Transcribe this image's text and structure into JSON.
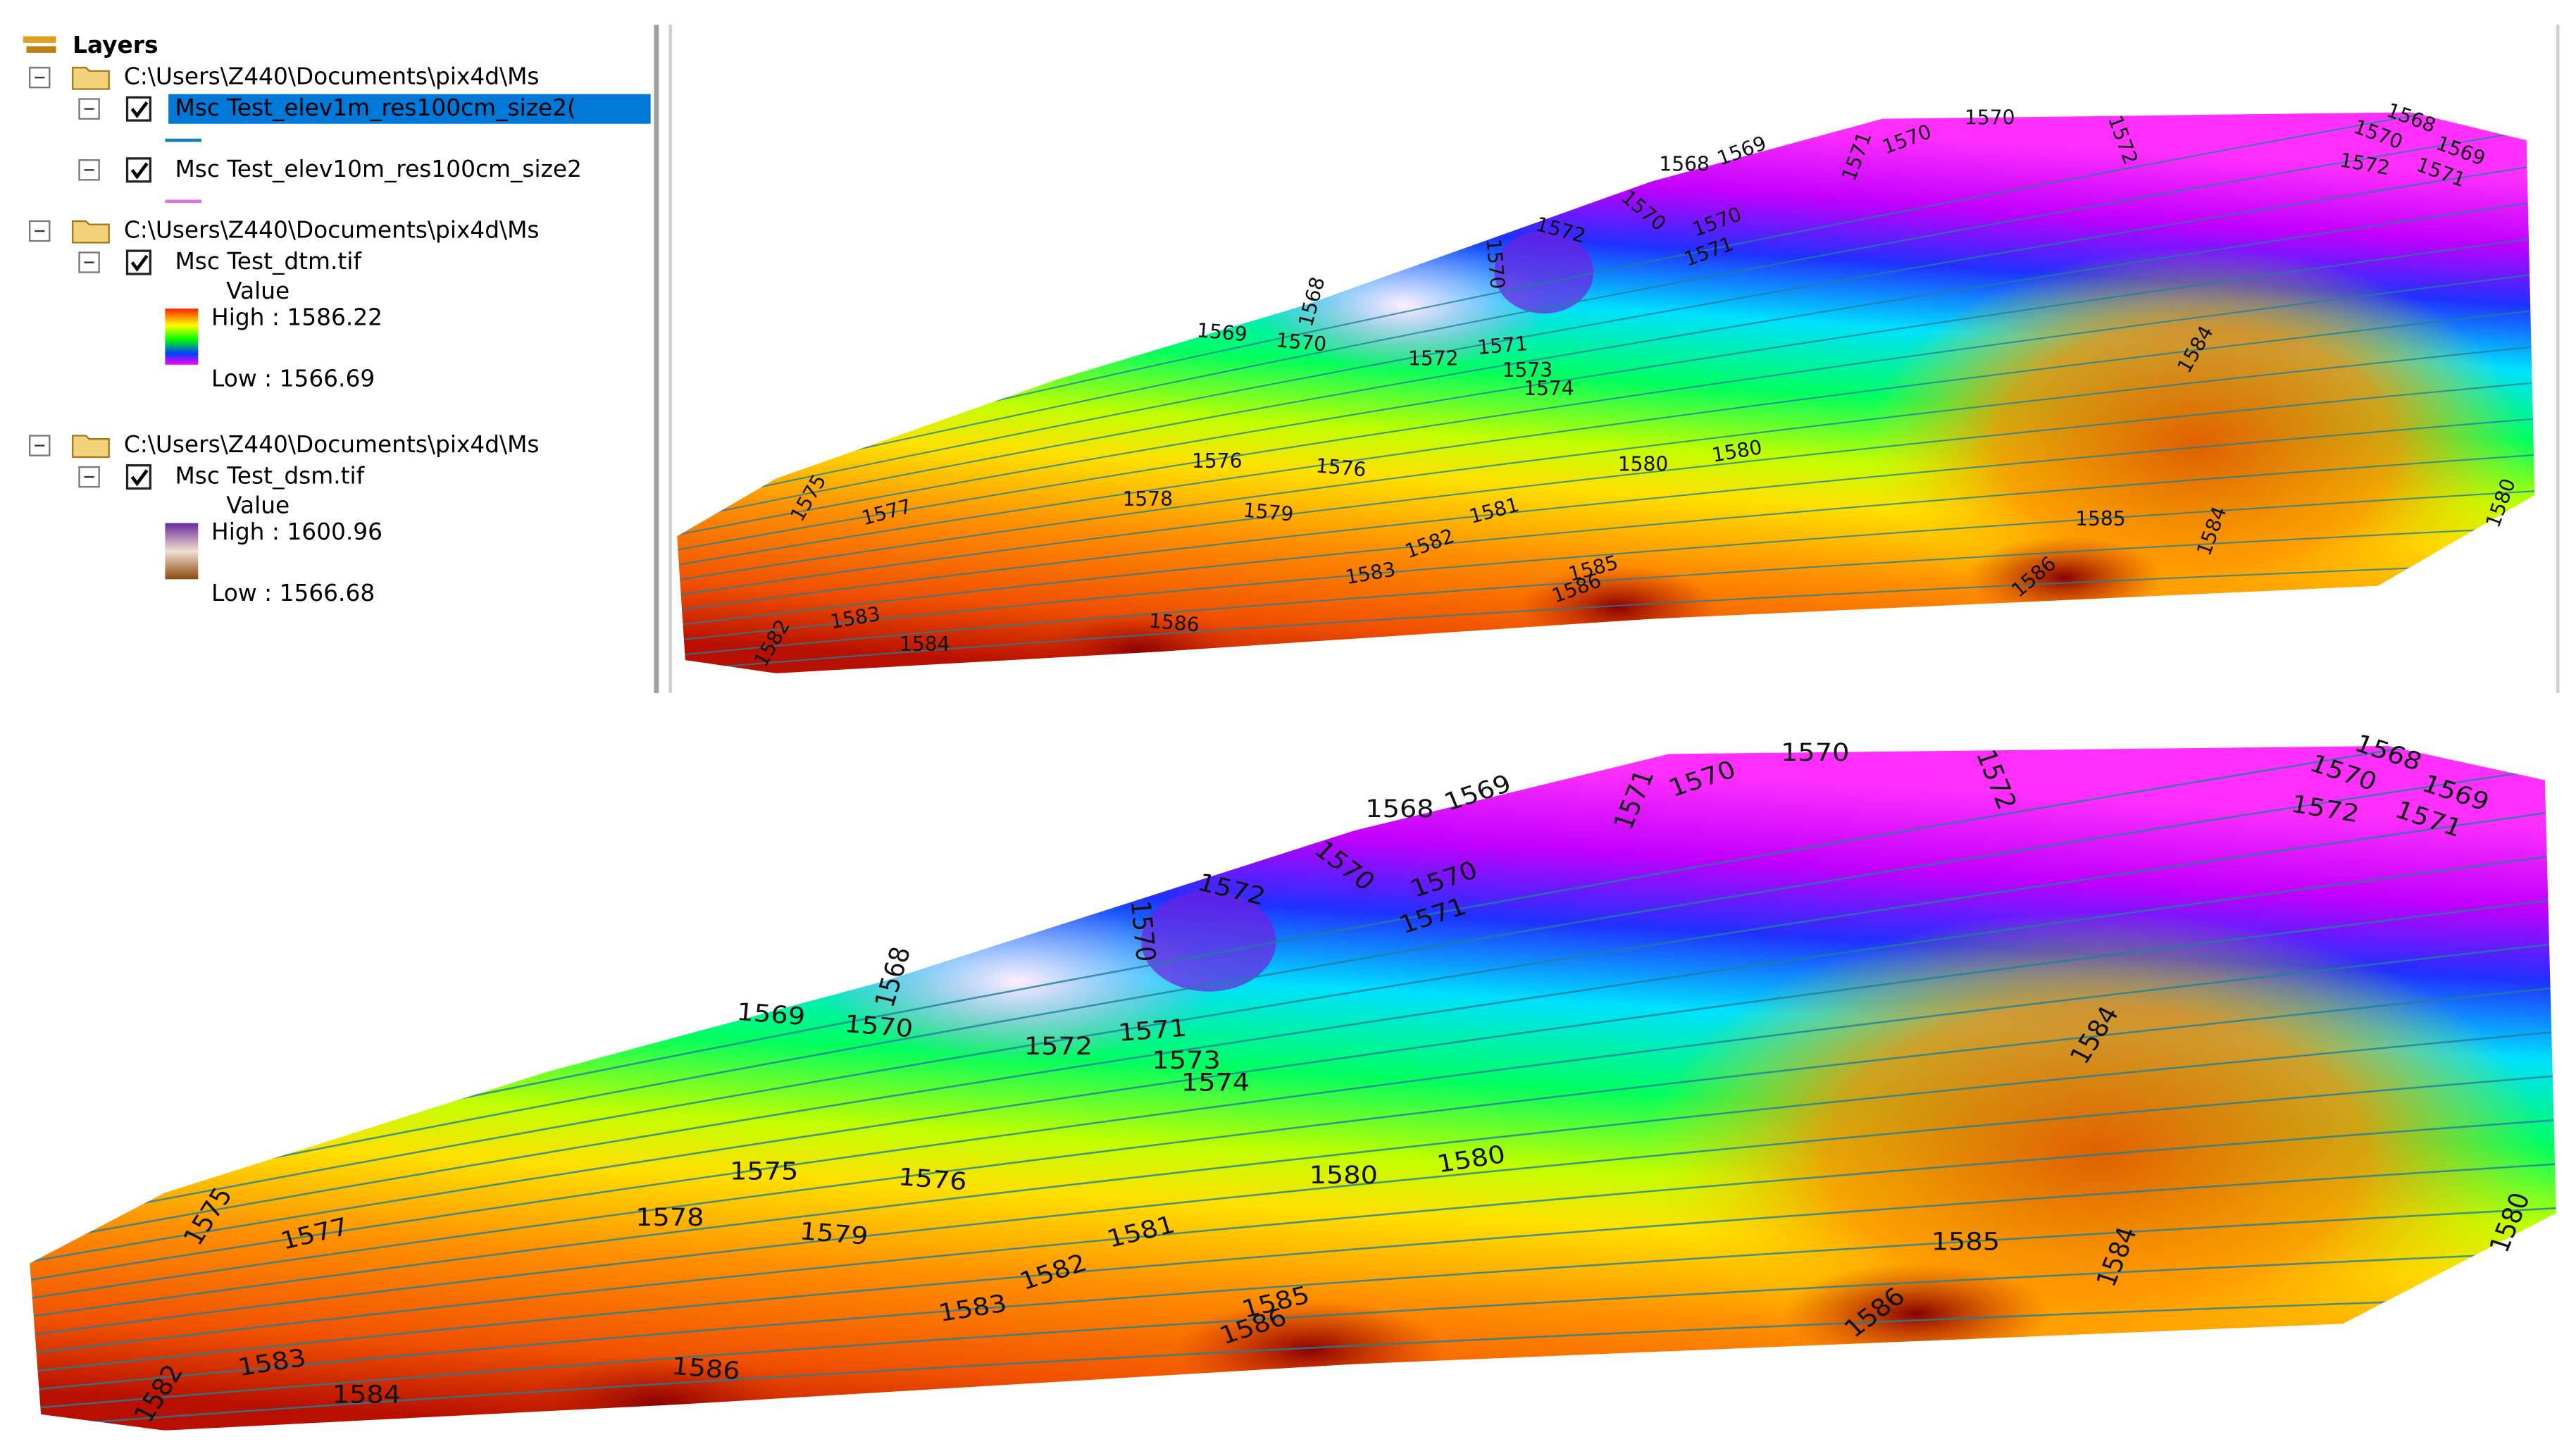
{
  "panel": {
    "title": "Layers",
    "groups": [
      {
        "path": "C:\\Users\\Z440\\Documents\\pix4d\\Ms",
        "layers": [
          {
            "name": "Msc Test_elev1m_res100cm_size2("
          },
          {
            "name": "Msc Test_elev10m_res100cm_size2"
          }
        ]
      },
      {
        "path": "C:\\Users\\Z440\\Documents\\pix4d\\Ms",
        "layers": [
          {
            "name": "Msc Test_dtm.tif",
            "legend_title": "Value",
            "high": "High : 1586.22",
            "low": "Low : 1566.69"
          }
        ]
      },
      {
        "path": "C:\\Users\\Z440\\Documents\\pix4d\\Ms",
        "layers": [
          {
            "name": "Msc Test_dsm.tif",
            "legend_title": "Value",
            "high": "High : 1600.96",
            "low": "Low : 1566.68"
          }
        ]
      }
    ]
  },
  "maps": [
    {
      "labels": [
        "1568",
        "1569",
        "1571",
        "1570",
        "1570",
        "1572",
        "1568",
        "1570",
        "1569",
        "1572",
        "1571",
        "1570",
        "1570",
        "1571",
        "1572",
        "1570",
        "1568",
        "1569",
        "1570",
        "1572",
        "1571",
        "1573",
        "1574",
        "1576",
        "1576",
        "1580",
        "1580",
        "1575",
        "1577",
        "1578",
        "1579",
        "1581",
        "1582",
        "1583",
        "1585",
        "1586",
        "1585",
        "1584",
        "1584",
        "1580",
        "1586",
        "1582",
        "1583",
        "1584",
        "1586"
      ]
    },
    {
      "labels": [
        "1568",
        "1569",
        "1571",
        "1570",
        "1570",
        "1572",
        "1568",
        "1570",
        "1569",
        "1572",
        "1571",
        "1570",
        "1570",
        "1571",
        "1572",
        "1570",
        "1568",
        "1569",
        "1570",
        "1572",
        "1571",
        "1573",
        "1574",
        "1575",
        "1576",
        "1580",
        "1580",
        "1575",
        "1577",
        "1578",
        "1579",
        "1581",
        "1582",
        "1583",
        "1585",
        "1586",
        "1585",
        "1584",
        "1584",
        "1580",
        "1586",
        "1582",
        "1583",
        "1584",
        "1586"
      ]
    }
  ]
}
